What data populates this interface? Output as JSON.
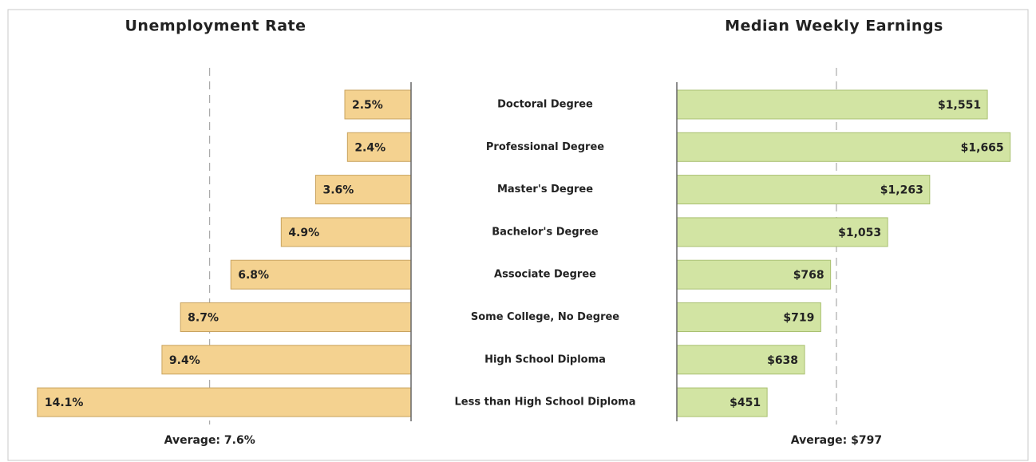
{
  "chart_data": [
    {
      "type": "bar",
      "orientation": "horizontal",
      "direction": "left",
      "title": "Unemployment Rate",
      "categories": [
        "Doctoral Degree",
        "Professional Degree",
        "Master's Degree",
        "Bachelor's Degree",
        "Associate Degree",
        "Some College, No Degree",
        "High School Diploma",
        "Less than High School Diploma"
      ],
      "values": [
        2.5,
        2.4,
        3.6,
        4.9,
        6.8,
        8.7,
        9.4,
        14.1
      ],
      "value_labels": [
        "2.5%",
        "2.4%",
        "3.6%",
        "4.9%",
        "6.8%",
        "8.7%",
        "9.4%",
        "14.1%"
      ],
      "color": "#f4d290",
      "xlim": [
        0,
        15
      ],
      "average": {
        "value": 7.6,
        "label": "Average: 7.6%"
      }
    },
    {
      "type": "bar",
      "orientation": "horizontal",
      "direction": "right",
      "title": "Median Weekly Earnings",
      "values": [
        1551,
        1665,
        1263,
        1053,
        768,
        719,
        638,
        451
      ],
      "value_labels": [
        "$1,551",
        "$1,665",
        "$1,263",
        "$1,053",
        "$768",
        "$719",
        "$638",
        "$451"
      ],
      "color": "#d2e4a3",
      "xlim": [
        0,
        1750
      ],
      "average": {
        "value": 797,
        "label": "Average: $797"
      }
    }
  ]
}
